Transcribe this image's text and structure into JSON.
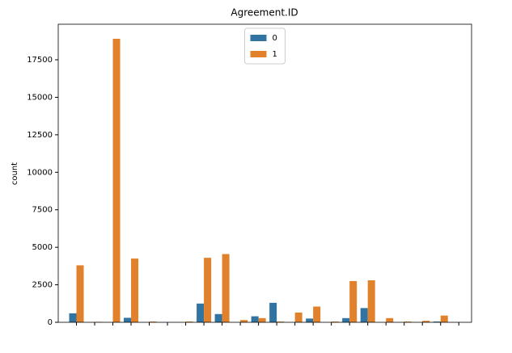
{
  "chart_data": {
    "type": "bar",
    "title": "Agreement.ID",
    "ylabel": "count",
    "categories": [
      null,
      null,
      null,
      null,
      null,
      null,
      null,
      null,
      null,
      null,
      null,
      null,
      null,
      null,
      null,
      null,
      null,
      null,
      null,
      null,
      null,
      null
    ],
    "series": [
      {
        "name": "0",
        "color": "#3274a1",
        "values": [
          600,
          0,
          0,
          300,
          0,
          0,
          0,
          1250,
          550,
          0,
          400,
          1300,
          0,
          250,
          0,
          280,
          950,
          0,
          0,
          0,
          50,
          0
        ]
      },
      {
        "name": "1",
        "color": "#e1812c",
        "values": [
          3800,
          30,
          18900,
          4250,
          50,
          0,
          50,
          4300,
          4550,
          150,
          280,
          50,
          650,
          1050,
          50,
          2750,
          2800,
          280,
          50,
          100,
          450,
          0
        ]
      }
    ],
    "ylim": [
      0,
      19870
    ],
    "yticks": [
      0,
      2500,
      5000,
      7500,
      10000,
      12500,
      15000,
      17500
    ],
    "legend": "upper center",
    "grid": false
  }
}
